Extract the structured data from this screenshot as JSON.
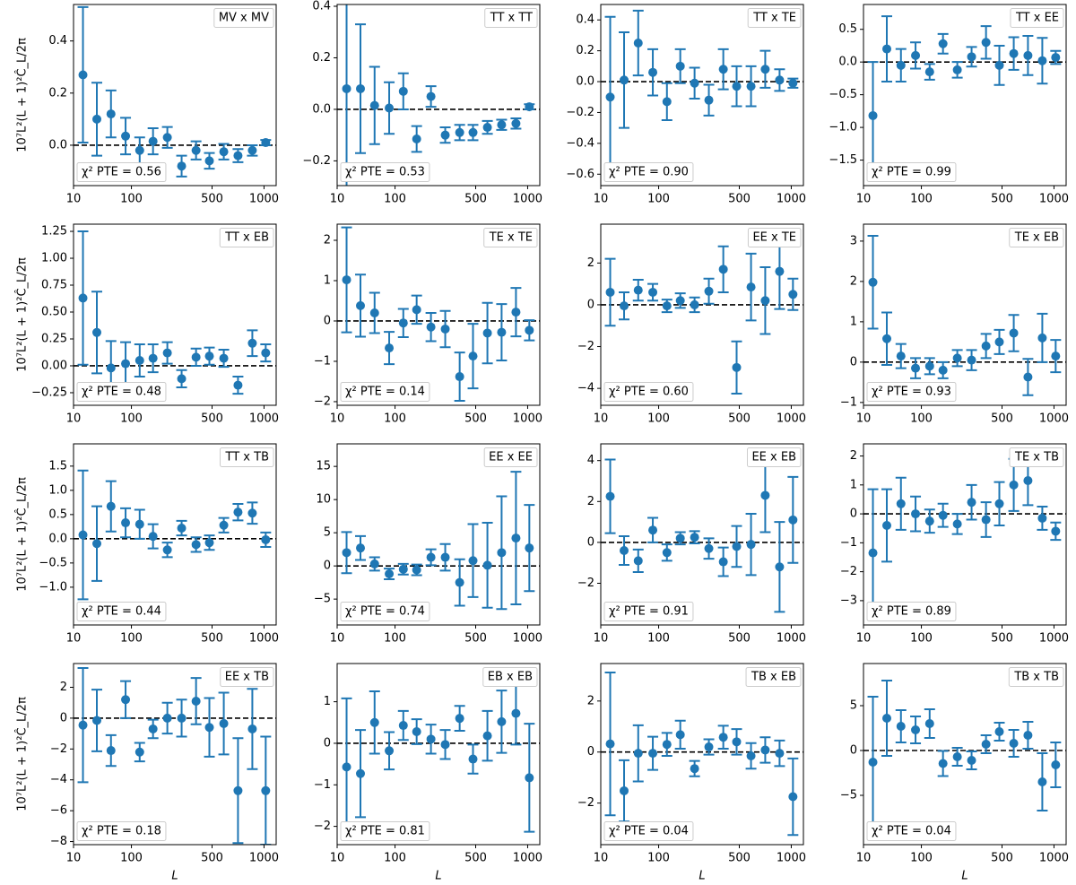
{
  "chart_data": [
    {
      "type": "errorbar",
      "title": "MV x MV",
      "annotation": "χ² PTE = 0.56",
      "ylabel": "10⁷L²(L + 1)²Ĉ_L/2π",
      "color": "#1f77b4",
      "xscale": "power",
      "xexponent": 0.36,
      "xlim": [
        10,
        1150
      ],
      "xticks": [
        10,
        100,
        500,
        1000
      ],
      "ylim": [
        -0.155,
        0.54
      ],
      "yticks": [
        {
          "value": 0,
          "label": "0.0"
        },
        {
          "value": 0.2,
          "label": "0.2"
        },
        {
          "value": 0.4,
          "label": "0.4"
        }
      ],
      "x": [
        17,
        32,
        54,
        85,
        124,
        170,
        230,
        302,
        388,
        480,
        594,
        722,
        868,
        1020
      ],
      "values": [
        0.27,
        0.1,
        0.12,
        0.035,
        -0.02,
        0.015,
        0.03,
        -0.08,
        -0.02,
        -0.06,
        -0.025,
        -0.04,
        -0.02,
        0.01
      ],
      "errors": [
        0.26,
        0.14,
        0.09,
        0.07,
        0.05,
        0.05,
        0.04,
        0.04,
        0.035,
        0.03,
        0.03,
        0.025,
        0.02,
        0.01
      ]
    },
    {
      "type": "errorbar",
      "title": "TT x TT",
      "annotation": "χ² PTE = 0.53",
      "color": "#1f77b4",
      "xscale": "power",
      "xexponent": 0.36,
      "xlim": [
        10,
        1150
      ],
      "xticks": [
        10,
        100,
        500,
        1000
      ],
      "ylim": [
        -0.296,
        0.407
      ],
      "yticks": [
        {
          "value": -0.2,
          "label": "−0.2"
        },
        {
          "value": 0,
          "label": "0.0"
        },
        {
          "value": 0.2,
          "label": "0.2"
        },
        {
          "value": 0.4,
          "label": "0.4"
        }
      ],
      "x": [
        17,
        32,
        54,
        85,
        124,
        170,
        230,
        302,
        388,
        480,
        594,
        722,
        868,
        1020
      ],
      "values": [
        0.08,
        0.08,
        0.015,
        0.005,
        0.07,
        -0.115,
        0.05,
        -0.1,
        -0.09,
        -0.09,
        -0.07,
        -0.06,
        -0.055,
        0.01
      ],
      "errors": [
        0.42,
        0.25,
        0.15,
        0.1,
        0.07,
        0.05,
        0.04,
        0.03,
        0.03,
        0.03,
        0.025,
        0.02,
        0.02,
        0.01
      ]
    },
    {
      "type": "errorbar",
      "title": "TT x TE",
      "annotation": "χ² PTE = 0.90",
      "color": "#1f77b4",
      "xscale": "power",
      "xexponent": 0.36,
      "xlim": [
        10,
        1150
      ],
      "xticks": [
        10,
        100,
        500,
        1000
      ],
      "ylim": [
        -0.674,
        0.5
      ],
      "yticks": [
        {
          "value": -0.6,
          "label": "−0.6"
        },
        {
          "value": -0.4,
          "label": "−0.4"
        },
        {
          "value": -0.2,
          "label": "−0.2"
        },
        {
          "value": 0,
          "label": "0.0"
        },
        {
          "value": 0.2,
          "label": "0.2"
        },
        {
          "value": 0.4,
          "label": "0.4"
        }
      ],
      "x": [
        17,
        32,
        54,
        85,
        124,
        170,
        230,
        302,
        388,
        480,
        594,
        722,
        868,
        1020
      ],
      "values": [
        -0.1,
        0.01,
        0.25,
        0.06,
        -0.13,
        0.1,
        -0.01,
        -0.12,
        0.08,
        -0.03,
        -0.03,
        0.08,
        0.01,
        -0.01
      ],
      "errors": [
        0.52,
        0.31,
        0.21,
        0.15,
        0.12,
        0.11,
        0.1,
        0.1,
        0.13,
        0.13,
        0.13,
        0.12,
        0.07,
        0.03
      ]
    },
    {
      "type": "errorbar",
      "title": "TT x EE",
      "annotation": "χ² PTE = 0.99",
      "color": "#1f77b4",
      "xscale": "power",
      "xexponent": 0.36,
      "xlim": [
        10,
        1150
      ],
      "xticks": [
        10,
        100,
        500,
        1000
      ],
      "ylim": [
        -1.89,
        0.88
      ],
      "yticks": [
        {
          "value": -1.5,
          "label": "−1.5"
        },
        {
          "value": -1,
          "label": "−1.0"
        },
        {
          "value": -0.5,
          "label": "−0.5"
        },
        {
          "value": 0,
          "label": "0.0"
        },
        {
          "value": 0.5,
          "label": "0.5"
        }
      ],
      "x": [
        17,
        32,
        54,
        85,
        124,
        170,
        230,
        302,
        388,
        480,
        594,
        722,
        868,
        1020
      ],
      "values": [
        -0.82,
        0.2,
        -0.05,
        0.1,
        -0.15,
        0.28,
        -0.12,
        0.08,
        0.3,
        -0.05,
        0.13,
        0.1,
        0.02,
        0.07
      ],
      "errors": [
        0.82,
        0.5,
        0.25,
        0.2,
        0.12,
        0.15,
        0.12,
        0.15,
        0.25,
        0.3,
        0.25,
        0.3,
        0.35,
        0.1
      ]
    },
    {
      "type": "errorbar",
      "title": "TT x EB",
      "annotation": "χ² PTE = 0.48",
      "ylabel": "10⁷L²(L + 1)²Ĉ_L/2π",
      "color": "#1f77b4",
      "xscale": "power",
      "xexponent": 0.36,
      "xlim": [
        10,
        1150
      ],
      "xticks": [
        10,
        100,
        500,
        1000
      ],
      "ylim": [
        -0.367,
        1.317
      ],
      "yticks": [
        {
          "value": -0.25,
          "label": "−0.25"
        },
        {
          "value": 0,
          "label": "0.00"
        },
        0.25,
        {
          "value": 0.5,
          "label": "0.50"
        },
        0.75,
        {
          "value": 1,
          "label": "1.00"
        },
        1.25
      ],
      "x": [
        17,
        32,
        54,
        85,
        124,
        170,
        230,
        302,
        388,
        480,
        594,
        722,
        868,
        1020
      ],
      "values": [
        0.63,
        0.31,
        -0.02,
        0.02,
        0.05,
        0.07,
        0.12,
        -0.12,
        0.08,
        0.09,
        0.07,
        -0.18,
        0.21,
        0.12
      ],
      "errors": [
        0.62,
        0.38,
        0.25,
        0.2,
        0.15,
        0.13,
        0.1,
        0.08,
        0.08,
        0.08,
        0.08,
        0.08,
        0.12,
        0.08
      ]
    },
    {
      "type": "errorbar",
      "title": "TE x TE",
      "annotation": "χ² PTE = 0.14",
      "color": "#1f77b4",
      "xscale": "power",
      "xexponent": 0.36,
      "xlim": [
        10,
        1150
      ],
      "xticks": [
        10,
        100,
        500,
        1000
      ],
      "ylim": [
        -2.09,
        2.4
      ],
      "yticks": [
        {
          "value": -2,
          "label": "−2"
        },
        {
          "value": -1,
          "label": "−1"
        },
        0,
        1,
        2
      ],
      "x": [
        17,
        32,
        54,
        85,
        124,
        170,
        230,
        302,
        388,
        480,
        594,
        722,
        868,
        1020
      ],
      "values": [
        1.02,
        0.38,
        0.2,
        -0.67,
        -0.05,
        0.28,
        -0.15,
        -0.2,
        -1.38,
        -0.87,
        -0.3,
        -0.28,
        0.22,
        -0.23
      ],
      "errors": [
        1.3,
        0.77,
        0.5,
        0.4,
        0.35,
        0.35,
        0.35,
        0.45,
        0.6,
        0.8,
        0.75,
        0.7,
        0.6,
        0.25
      ]
    },
    {
      "type": "errorbar",
      "title": "EE x TE",
      "annotation": "χ² PTE = 0.60",
      "color": "#1f77b4",
      "xscale": "power",
      "xexponent": 0.36,
      "xlim": [
        10,
        1150
      ],
      "xticks": [
        10,
        100,
        500,
        1000
      ],
      "ylim": [
        -4.81,
        3.86
      ],
      "yticks": [
        {
          "value": -4,
          "label": "−4"
        },
        {
          "value": -2,
          "label": "−2"
        },
        0,
        2
      ],
      "x": [
        17,
        32,
        54,
        85,
        124,
        170,
        230,
        302,
        388,
        480,
        594,
        722,
        868,
        1020
      ],
      "values": [
        0.6,
        -0.05,
        0.7,
        0.6,
        -0.05,
        0.2,
        0,
        0.65,
        1.7,
        -3,
        0.85,
        0.2,
        1.6,
        0.5
      ],
      "errors": [
        1.6,
        0.65,
        0.5,
        0.4,
        0.3,
        0.35,
        0.35,
        0.6,
        1.1,
        1.25,
        1.6,
        1.6,
        1.8,
        0.75
      ]
    },
    {
      "type": "errorbar",
      "title": "TE x EB",
      "annotation": "χ² PTE = 0.93",
      "color": "#1f77b4",
      "xscale": "power",
      "xexponent": 0.36,
      "xlim": [
        10,
        1150
      ],
      "xticks": [
        10,
        100,
        500,
        1000
      ],
      "ylim": [
        -1.07,
        3.42
      ],
      "yticks": [
        {
          "value": -1,
          "label": "−1"
        },
        0,
        1,
        2,
        3
      ],
      "x": [
        17,
        32,
        54,
        85,
        124,
        170,
        230,
        302,
        388,
        480,
        594,
        722,
        868,
        1020
      ],
      "values": [
        1.98,
        0.58,
        0.15,
        -0.15,
        -0.1,
        -0.2,
        0.1,
        0.05,
        0.4,
        0.5,
        0.72,
        -0.37,
        0.6,
        0.15
      ],
      "errors": [
        1.15,
        0.65,
        0.3,
        0.25,
        0.2,
        0.2,
        0.2,
        0.25,
        0.3,
        0.3,
        0.45,
        0.45,
        0.6,
        0.4
      ]
    },
    {
      "type": "errorbar",
      "title": "TT x TB",
      "annotation": "χ² PTE = 0.44",
      "ylabel": "10⁷L²(L + 1)²Ĉ_L/2π",
      "color": "#1f77b4",
      "xscale": "power",
      "xexponent": 0.36,
      "xlim": [
        10,
        1150
      ],
      "xticks": [
        10,
        100,
        500,
        1000
      ],
      "ylim": [
        -1.78,
        1.96
      ],
      "yticks": [
        {
          "value": -1,
          "label": "−1.0"
        },
        {
          "value": -0.5,
          "label": "−0.5"
        },
        {
          "value": 0,
          "label": "0.0"
        },
        0.5,
        {
          "value": 1,
          "label": "1.0"
        },
        1.5
      ],
      "x": [
        17,
        32,
        54,
        85,
        124,
        170,
        230,
        302,
        388,
        480,
        594,
        722,
        868,
        1020
      ],
      "values": [
        0.08,
        -0.1,
        0.67,
        0.33,
        0.3,
        0.05,
        -0.23,
        0.22,
        -0.12,
        -0.08,
        0.28,
        0.55,
        0.53,
        -0.02
      ],
      "errors": [
        1.33,
        0.77,
        0.52,
        0.3,
        0.3,
        0.25,
        0.15,
        0.15,
        0.15,
        0.15,
        0.15,
        0.17,
        0.22,
        0.15
      ]
    },
    {
      "type": "errorbar",
      "title": "EE x EE",
      "annotation": "χ² PTE = 0.74",
      "color": "#1f77b4",
      "xscale": "power",
      "xexponent": 0.36,
      "xlim": [
        10,
        1150
      ],
      "xticks": [
        10,
        100,
        500,
        1000
      ],
      "ylim": [
        -8.9,
        18.4
      ],
      "yticks": [
        {
          "value": -5,
          "label": "−5"
        },
        0,
        5,
        10,
        15
      ],
      "x": [
        17,
        32,
        54,
        85,
        124,
        170,
        230,
        302,
        388,
        480,
        594,
        722,
        868,
        1020
      ],
      "values": [
        2,
        2.7,
        0.3,
        -1.2,
        -0.5,
        -0.6,
        1.3,
        1.3,
        -2.5,
        0.8,
        0.1,
        2,
        4.2,
        2.7
      ],
      "errors": [
        3.1,
        1.8,
        1,
        0.8,
        0.8,
        0.8,
        1.2,
        2,
        3.5,
        5.5,
        6.4,
        8.5,
        10,
        6.5
      ]
    },
    {
      "type": "errorbar",
      "title": "EE x EB",
      "annotation": "χ² PTE = 0.91",
      "color": "#1f77b4",
      "xscale": "power",
      "xexponent": 0.36,
      "xlim": [
        10,
        1150
      ],
      "xticks": [
        10,
        100,
        500,
        1000
      ],
      "ylim": [
        -4.04,
        4.82
      ],
      "yticks": [
        {
          "value": -2,
          "label": "−2"
        },
        0,
        2,
        4
      ],
      "x": [
        17,
        32,
        54,
        85,
        124,
        170,
        230,
        302,
        388,
        480,
        594,
        722,
        868,
        1020
      ],
      "values": [
        2.25,
        -0.4,
        -0.9,
        0.6,
        -0.5,
        0.2,
        0.25,
        -0.3,
        -0.95,
        -0.2,
        -0.1,
        2.3,
        -1.2,
        1.1
      ],
      "errors": [
        1.8,
        0.7,
        0.55,
        0.6,
        0.4,
        0.3,
        0.3,
        0.5,
        0.7,
        1,
        1.5,
        1.8,
        2.2,
        2.1
      ]
    },
    {
      "type": "errorbar",
      "title": "TE x TB",
      "annotation": "χ² PTE = 0.89",
      "color": "#1f77b4",
      "xscale": "power",
      "xexponent": 0.36,
      "xlim": [
        10,
        1150
      ],
      "xticks": [
        10,
        100,
        500,
        1000
      ],
      "ylim": [
        -3.84,
        2.42
      ],
      "yticks": [
        {
          "value": -3,
          "label": "−3"
        },
        {
          "value": -2,
          "label": "−2"
        },
        {
          "value": -1,
          "label": "−1"
        },
        0,
        1,
        2
      ],
      "x": [
        17,
        32,
        54,
        85,
        124,
        170,
        230,
        302,
        388,
        480,
        594,
        722,
        868,
        1020
      ],
      "values": [
        -1.35,
        -0.4,
        0.35,
        0,
        -0.25,
        -0.05,
        -0.35,
        0.4,
        -0.2,
        0.35,
        1,
        1.15,
        -0.15,
        -0.6
      ],
      "errors": [
        2.2,
        1.25,
        0.9,
        0.6,
        0.4,
        0.4,
        0.35,
        0.6,
        0.6,
        0.75,
        0.9,
        0.85,
        0.4,
        0.3
      ]
    },
    {
      "type": "errorbar",
      "title": "EE x TB",
      "annotation": "χ² PTE = 0.18",
      "ylabel": "10⁷L²(L + 1)²Ĉ_L/2π",
      "xlabel": "L",
      "color": "#1f77b4",
      "xscale": "power",
      "xexponent": 0.36,
      "xlim": [
        10,
        1150
      ],
      "xticks": [
        10,
        100,
        500,
        1000
      ],
      "ylim": [
        -8.2,
        3.54
      ],
      "yticks": [
        {
          "value": -8,
          "label": "−8"
        },
        {
          "value": -6,
          "label": "−6"
        },
        {
          "value": -4,
          "label": "−4"
        },
        {
          "value": -2,
          "label": "−2"
        },
        0,
        2
      ],
      "x": [
        17,
        32,
        54,
        85,
        124,
        170,
        230,
        302,
        388,
        480,
        594,
        722,
        868,
        1020
      ],
      "values": [
        -0.45,
        -0.15,
        -2.1,
        1.2,
        -2.2,
        -0.7,
        0,
        0,
        1.1,
        -0.6,
        -0.35,
        -4.7,
        -0.7,
        -4.7
      ],
      "errors": [
        3.7,
        2,
        1,
        1.2,
        0.6,
        0.6,
        1,
        1.2,
        1.5,
        1.9,
        2,
        3.4,
        2.6,
        3.5
      ]
    },
    {
      "type": "errorbar",
      "title": "EB x EB",
      "annotation": "χ² PTE = 0.81",
      "xlabel": "L",
      "color": "#1f77b4",
      "xscale": "power",
      "xexponent": 0.36,
      "xlim": [
        10,
        1150
      ],
      "xticks": [
        10,
        100,
        500,
        1000
      ],
      "ylim": [
        -2.44,
        1.92
      ],
      "yticks": [
        {
          "value": -2,
          "label": "−2"
        },
        {
          "value": -1,
          "label": "−1"
        },
        0,
        1
      ],
      "x": [
        17,
        32,
        54,
        85,
        124,
        170,
        230,
        302,
        388,
        480,
        594,
        722,
        868,
        1020
      ],
      "values": [
        -0.57,
        -0.73,
        0.5,
        -0.18,
        0.43,
        0.28,
        0.1,
        -0.03,
        0.6,
        -0.38,
        0.18,
        0.52,
        0.72,
        -0.83
      ],
      "errors": [
        1.65,
        1.05,
        0.75,
        0.45,
        0.35,
        0.3,
        0.35,
        0.35,
        0.3,
        0.35,
        0.6,
        0.75,
        0.75,
        1.3
      ]
    },
    {
      "type": "errorbar",
      "title": "TB x EB",
      "annotation": "χ² PTE = 0.04",
      "xlabel": "L",
      "color": "#1f77b4",
      "xscale": "power",
      "xexponent": 0.36,
      "xlim": [
        10,
        1150
      ],
      "xticks": [
        10,
        100,
        500,
        1000
      ],
      "ylim": [
        -3.63,
        3.47
      ],
      "yticks": [
        {
          "value": -2,
          "label": "−2"
        },
        0,
        2
      ],
      "x": [
        17,
        32,
        54,
        85,
        124,
        170,
        230,
        302,
        388,
        480,
        594,
        722,
        868,
        1020
      ],
      "values": [
        0.32,
        -1.52,
        -0.05,
        -0.05,
        0.3,
        0.68,
        -0.65,
        0.2,
        0.58,
        0.4,
        -0.15,
        0.08,
        -0.05,
        -1.75
      ],
      "errors": [
        2.8,
        1.2,
        1.1,
        0.65,
        0.45,
        0.55,
        0.3,
        0.3,
        0.45,
        0.5,
        0.5,
        0.5,
        0.5,
        1.5
      ]
    },
    {
      "type": "errorbar",
      "title": "TB x TB",
      "annotation": "χ² PTE = 0.04",
      "xlabel": "L",
      "color": "#1f77b4",
      "xscale": "power",
      "xexponent": 0.36,
      "xlim": [
        10,
        1150
      ],
      "xticks": [
        10,
        100,
        500,
        1000
      ],
      "ylim": [
        -10.5,
        9.7
      ],
      "yticks": [
        {
          "value": -5,
          "label": "−5"
        },
        0,
        5
      ],
      "x": [
        17,
        32,
        54,
        85,
        124,
        170,
        230,
        302,
        388,
        480,
        594,
        722,
        868,
        1020
      ],
      "values": [
        -1.3,
        3.6,
        2.7,
        2.3,
        3,
        -1.45,
        -0.7,
        -1.1,
        0.7,
        2.1,
        0.8,
        1.7,
        -3.5,
        -1.6
      ],
      "errors": [
        7.3,
        4.2,
        1.8,
        1.5,
        1.6,
        1.4,
        1,
        1,
        1,
        1,
        1.5,
        1.5,
        3.2,
        2.5
      ]
    }
  ]
}
